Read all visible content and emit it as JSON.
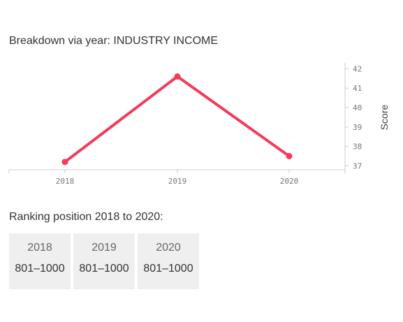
{
  "title": "Breakdown via year: INDUSTRY INCOME",
  "chart_data": {
    "type": "line",
    "x": [
      "2018",
      "2019",
      "2020"
    ],
    "series": [
      {
        "values": [
          37.2,
          41.6,
          37.5
        ],
        "color": "#f23b5a"
      }
    ],
    "ylabel": "Score",
    "ylim": [
      36.8,
      42.3
    ],
    "yticks": [
      "37",
      "38",
      "39",
      "40",
      "41",
      "42"
    ],
    "yaxis_position": "right",
    "grid": false
  },
  "ranking": {
    "title": "Ranking position 2018 to 2020:",
    "items": [
      {
        "year": "2018",
        "value": "801–1000"
      },
      {
        "year": "2019",
        "value": "801–1000"
      },
      {
        "year": "2020",
        "value": "801–1000"
      }
    ]
  }
}
